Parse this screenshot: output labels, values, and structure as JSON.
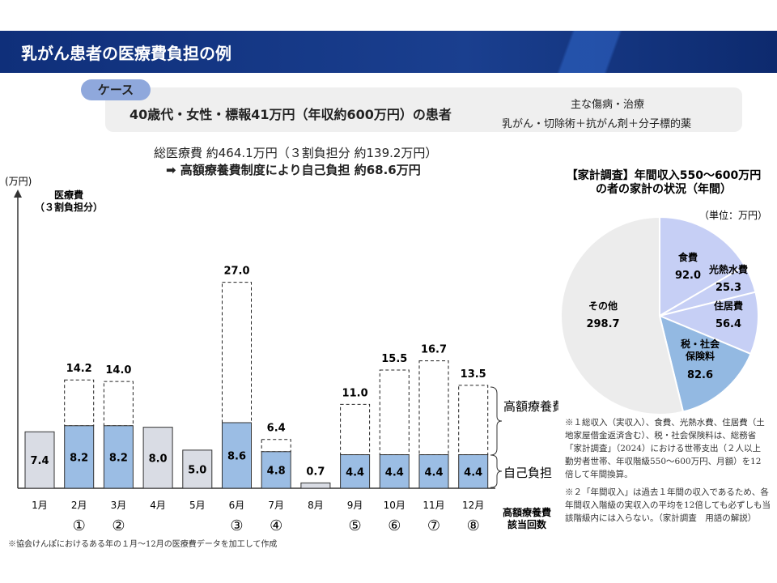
{
  "title": "乳がん患者の医療費負担の例",
  "case": {
    "tag": "ケース",
    "patient": "40歳代・女性・標報41万円（年収約600万円）の患者",
    "disease_label": "主な傷病・治療",
    "disease": "乳がん・切除術＋抗がん剤＋分子標的薬"
  },
  "summary": {
    "line1": "総医療費 約464.1万円（３割負担分 約139.2万円）",
    "line2": "➡ 高額療養費制度により自己負担 約68.6万円"
  },
  "chart_data": [
    {
      "type": "bar",
      "ylabel": "(万円)",
      "series_label": "医療費\n（３割負担分）",
      "categories": [
        "1月",
        "2月",
        "3月",
        "4月",
        "5月",
        "6月",
        "7月",
        "8月",
        "9月",
        "10月",
        "11月",
        "12月"
      ],
      "self_pay": [
        7.4,
        8.2,
        8.2,
        8.0,
        5.0,
        8.6,
        4.8,
        0.7,
        4.4,
        4.4,
        4.4,
        4.4
      ],
      "total": [
        7.4,
        14.2,
        14.0,
        8.0,
        5.0,
        27.0,
        6.4,
        0.7,
        11.0,
        15.5,
        16.7,
        13.5
      ],
      "high_cost_count": [
        "",
        "①",
        "②",
        "",
        "",
        "③",
        "④",
        "",
        "⑤",
        "⑥",
        "⑦",
        "⑧"
      ],
      "legend": {
        "dashed": "高額療養費",
        "solid": "自己負担",
        "count": "高額療養費\n該当回数"
      },
      "colors": {
        "applied": "#9bbde4",
        "not_applied": "#d9dce4"
      }
    },
    {
      "type": "pie",
      "title": "【家計調査】年間収入550～600万円\nの者の家計の状況（年間）",
      "unit": "（単位：万円）",
      "labels": [
        "食費",
        "光熱水費",
        "住居費",
        "税・社会\n保険料",
        "その他"
      ],
      "values": [
        92.0,
        25.3,
        56.4,
        82.6,
        298.7
      ],
      "colors": [
        "#c6cff5",
        "#c6cff5",
        "#c6cff5",
        "#93b9e2",
        "#ececec"
      ]
    }
  ],
  "notes": {
    "n1": "※１総収入（実収入）、食費、光熱水費、住居費（土地家屋借金返済含む）、税・社会保険料は、総務省「家計調査」（2024）における世帯支出（２人以上勤労者世帯、年収階級550～600万円、月額）を12倍して年間換算。",
    "n2": "※２「年間収入」は過去１年間の収入であるため、各年間収入階級の実収入の平均を12倍しても必ずしも当該階級内には入らない。（家計調査　用語の解説）",
    "source": "※協会けんぽにおけるある年の１月～12月の医療費データを加工して作成"
  }
}
